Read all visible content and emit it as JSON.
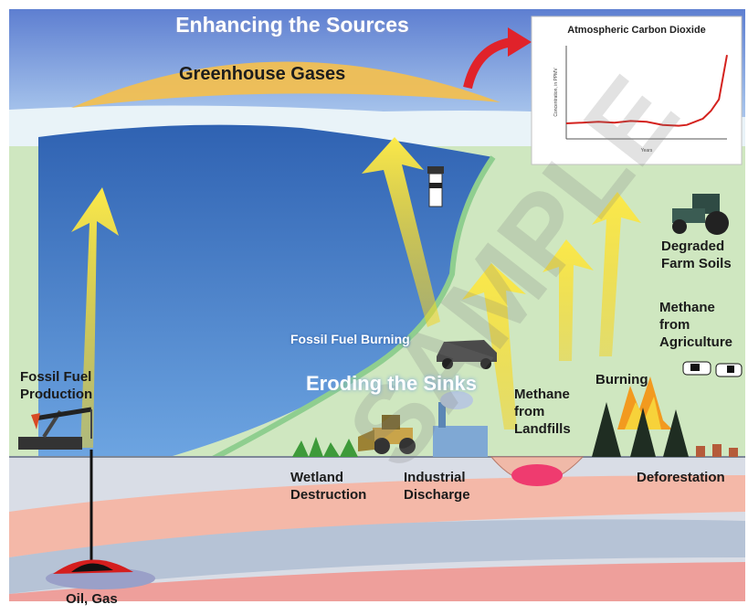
{
  "title": "Enhancing the Sources",
  "greenhouse_label": "Greenhouse Gases",
  "sinks_label": "Eroding the Sinks",
  "labels": {
    "fossil_fuel_production": [
      "Fossil Fuel",
      "Production"
    ],
    "oil_gas": "Oil, Gas",
    "fossil_fuel_burning": "Fossil Fuel Burning",
    "wetland_destruction": [
      "Wetland",
      "Destruction"
    ],
    "industrial_discharge": [
      "Industrial",
      "Discharge"
    ],
    "methane_landfills": [
      "Methane",
      "from",
      "Landfills"
    ],
    "burning": "Burning",
    "deforestation": "Deforestation",
    "degraded_farm_soils": [
      "Degraded",
      "Farm Soils"
    ],
    "methane_agriculture": [
      "Methane",
      "from",
      "Agriculture"
    ]
  },
  "watermark": "SAMPLE",
  "chart_data": {
    "type": "line",
    "title": "Atmospheric Carbon Dioxide",
    "xlabel": "Years",
    "ylabel": "Concentration, in PPMV",
    "series_color": "#d4221e",
    "x": [
      1000,
      1100,
      1200,
      1300,
      1400,
      1500,
      1600,
      1700,
      1750,
      1800,
      1850,
      1900,
      1950,
      2000
    ],
    "y": [
      280,
      281,
      282,
      281,
      283,
      282,
      278,
      277,
      278,
      282,
      286,
      296,
      311,
      368
    ],
    "xlim": [
      1000,
      2000
    ],
    "ylim": [
      260,
      380
    ]
  },
  "colors": {
    "sky": "#6f9fd8",
    "water": "#3f76c6",
    "land": "#cfe7c0",
    "ground": "#d9dde6",
    "arrow": "#f7e43a",
    "greenhouse_band": "#f1bf52",
    "curve_arrow": "#e0222a"
  }
}
